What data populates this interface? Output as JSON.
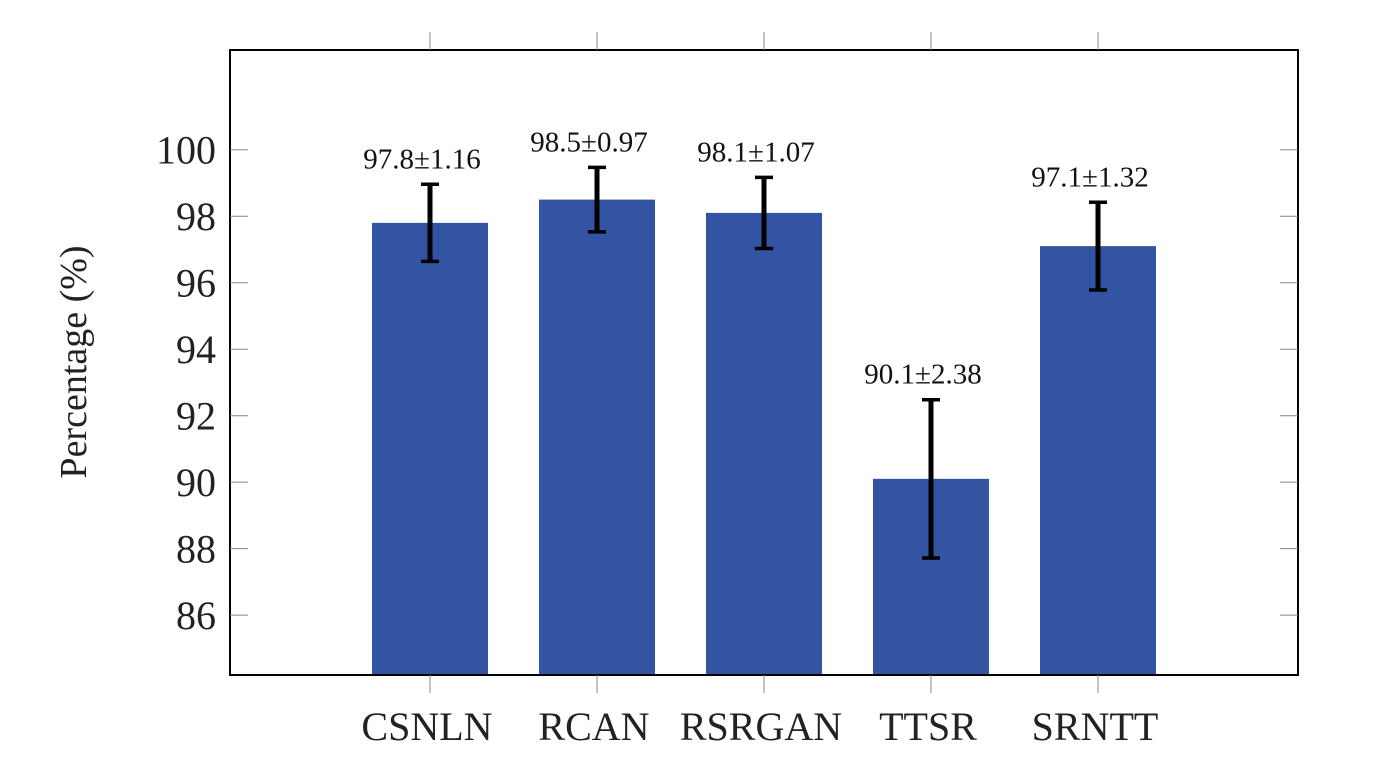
{
  "chart_data": {
    "type": "bar",
    "title": "",
    "xlabel": "",
    "ylabel": "Percentage (%)",
    "categories": [
      "CSNLN",
      "RCAN",
      "RSRGAN",
      "TTSR",
      "SRNTT"
    ],
    "values": [
      97.8,
      98.5,
      98.1,
      90.1,
      97.1
    ],
    "errors": [
      1.16,
      0.97,
      1.07,
      2.38,
      1.32
    ],
    "data_labels": [
      "97.8±1.16",
      "98.5±0.97",
      "98.1±1.07",
      "90.1±2.38",
      "97.1±1.32"
    ],
    "ylim": [
      84.2,
      103.0
    ],
    "yticks": [
      86,
      88,
      90,
      92,
      94,
      96,
      98,
      100
    ],
    "bar_color": "#3353A3",
    "errorbar_color": "#000000",
    "grid": false
  }
}
